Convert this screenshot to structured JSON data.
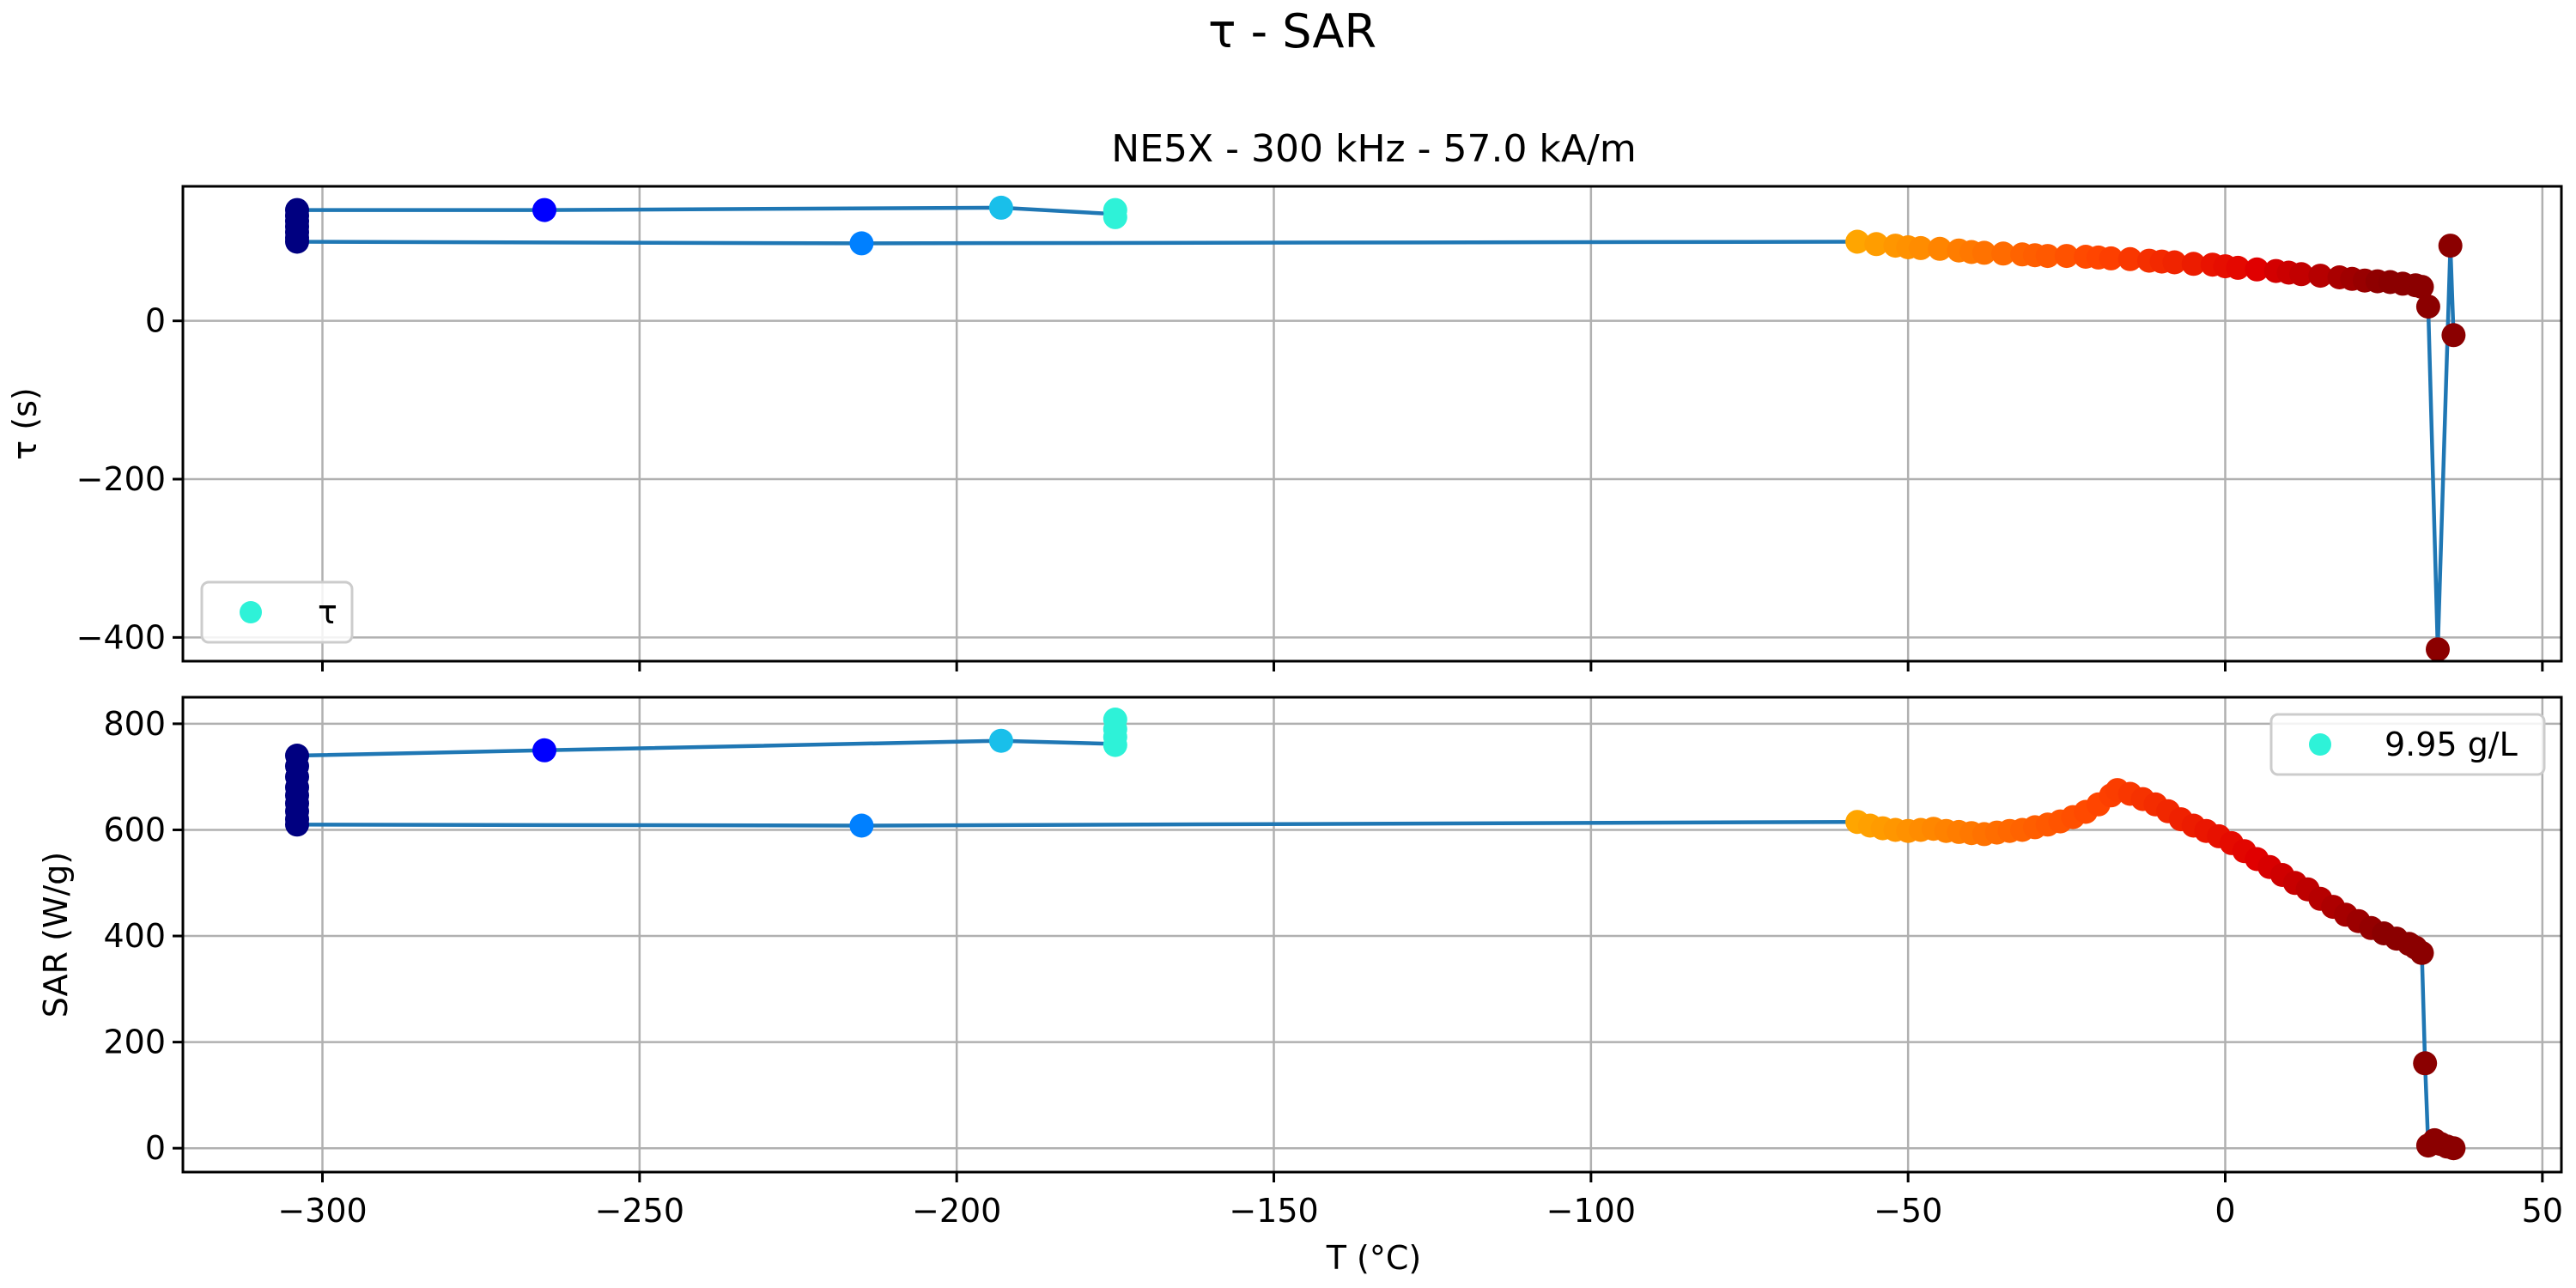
{
  "figure": {
    "suptitle": "τ - SAR",
    "subtitle": "NE5X - 300 kHz - 57.0 kA/m",
    "xlabel": "T (°C)"
  },
  "colors": {
    "line": "#1f77b4",
    "grid": "#b0b0b0",
    "legend_marker": "#2ef2d8",
    "colormap": [
      "#000080",
      "#0000ff",
      "#0080ff",
      "#2ef2d8",
      "#ffa500",
      "#ff4500",
      "#e00000",
      "#8b0000"
    ]
  },
  "chart_data": [
    {
      "type": "scatter",
      "name": "tau-panel",
      "xlabel": "",
      "ylabel": "τ (s)",
      "xlim": [
        -322,
        53
      ],
      "ylim": [
        -430,
        170
      ],
      "xticks": [
        -300,
        -250,
        -200,
        -150,
        -100,
        -50,
        0,
        50
      ],
      "yticks": [
        0,
        -200,
        -400
      ],
      "ytick_labels": [
        "0",
        "−200",
        "−400"
      ],
      "grid": true,
      "legend": {
        "label": "τ",
        "position": "lower-left"
      },
      "points": [
        [
          -304,
          140
        ],
        [
          -304,
          133
        ],
        [
          -304,
          126
        ],
        [
          -304,
          119
        ],
        [
          -304,
          112
        ],
        [
          -304,
          105
        ],
        [
          -304,
          100
        ],
        [
          -265,
          140
        ],
        [
          -215,
          98
        ],
        [
          -193,
          143
        ],
        [
          -175,
          140
        ],
        [
          -175,
          131
        ],
        [
          -58,
          100
        ],
        [
          -55,
          97
        ],
        [
          -52,
          95
        ],
        [
          -50,
          93
        ],
        [
          -48,
          92
        ],
        [
          -45,
          91
        ],
        [
          -42,
          89
        ],
        [
          -40,
          87
        ],
        [
          -38,
          86
        ],
        [
          -35,
          85
        ],
        [
          -32,
          84
        ],
        [
          -30,
          83
        ],
        [
          -28,
          82
        ],
        [
          -25,
          82
        ],
        [
          -22,
          81
        ],
        [
          -20,
          80
        ],
        [
          -18,
          79
        ],
        [
          -15,
          78
        ],
        [
          -12,
          76
        ],
        [
          -10,
          75
        ],
        [
          -8,
          74
        ],
        [
          -5,
          72
        ],
        [
          -2,
          71
        ],
        [
          0,
          69
        ],
        [
          2,
          67
        ],
        [
          5,
          65
        ],
        [
          8,
          63
        ],
        [
          10,
          61
        ],
        [
          12,
          59
        ],
        [
          15,
          57
        ],
        [
          18,
          55
        ],
        [
          20,
          53
        ],
        [
          22,
          51
        ],
        [
          24,
          50
        ],
        [
          26,
          49
        ],
        [
          28,
          47
        ],
        [
          30,
          45
        ],
        [
          31,
          43
        ],
        [
          32,
          18
        ],
        [
          33.5,
          -415
        ],
        [
          35.5,
          95
        ],
        [
          36,
          -18
        ]
      ],
      "line_path": [
        [
          -175,
          135
        ],
        [
          -193,
          143
        ],
        [
          -265,
          140
        ],
        [
          -304,
          140
        ],
        [
          -304,
          100
        ],
        [
          -215,
          98
        ],
        [
          -58,
          100
        ],
        [
          -40,
          88
        ],
        [
          -20,
          80
        ],
        [
          0,
          69
        ],
        [
          20,
          53
        ],
        [
          31,
          43
        ],
        [
          32,
          18
        ],
        [
          33.5,
          -415
        ],
        [
          35.5,
          95
        ],
        [
          36,
          -18
        ]
      ]
    },
    {
      "type": "scatter",
      "name": "sar-panel",
      "xlabel": "T (°C)",
      "ylabel": "SAR (W/g)",
      "xlim": [
        -322,
        53
      ],
      "ylim": [
        -45,
        850
      ],
      "xticks": [
        -300,
        -250,
        -200,
        -150,
        -100,
        -50,
        0,
        50
      ],
      "xtick_labels": [
        "−300",
        "−250",
        "−200",
        "−150",
        "−100",
        "−50",
        "0",
        "50"
      ],
      "yticks": [
        0,
        200,
        400,
        600,
        800
      ],
      "ytick_labels": [
        "0",
        "200",
        "400",
        "600",
        "800"
      ],
      "grid": true,
      "legend": {
        "label": "9.95 g/L",
        "position": "upper-right"
      },
      "points": [
        [
          -304,
          740
        ],
        [
          -304,
          720
        ],
        [
          -304,
          700
        ],
        [
          -304,
          680
        ],
        [
          -304,
          665
        ],
        [
          -304,
          650
        ],
        [
          -304,
          635
        ],
        [
          -304,
          620
        ],
        [
          -304,
          610
        ],
        [
          -265,
          750
        ],
        [
          -215,
          608
        ],
        [
          -193,
          768
        ],
        [
          -175,
          808
        ],
        [
          -175,
          790
        ],
        [
          -175,
          775
        ],
        [
          -175,
          760
        ],
        [
          -58,
          615
        ],
        [
          -56,
          608
        ],
        [
          -54,
          603
        ],
        [
          -52,
          600
        ],
        [
          -50,
          598
        ],
        [
          -48,
          600
        ],
        [
          -46,
          602
        ],
        [
          -44,
          598
        ],
        [
          -42,
          596
        ],
        [
          -40,
          594
        ],
        [
          -38,
          592
        ],
        [
          -36,
          595
        ],
        [
          -34,
          598
        ],
        [
          -32,
          600
        ],
        [
          -30,
          605
        ],
        [
          -28,
          610
        ],
        [
          -26,
          616
        ],
        [
          -24,
          624
        ],
        [
          -22,
          634
        ],
        [
          -20,
          648
        ],
        [
          -18,
          665
        ],
        [
          -17,
          675
        ],
        [
          -15,
          668
        ],
        [
          -13,
          658
        ],
        [
          -11,
          648
        ],
        [
          -9,
          635
        ],
        [
          -7,
          620
        ],
        [
          -5,
          608
        ],
        [
          -3,
          598
        ],
        [
          -1,
          588
        ],
        [
          1,
          575
        ],
        [
          3,
          560
        ],
        [
          5,
          545
        ],
        [
          7,
          530
        ],
        [
          9,
          515
        ],
        [
          11,
          500
        ],
        [
          13,
          488
        ],
        [
          15,
          470
        ],
        [
          17,
          455
        ],
        [
          19,
          440
        ],
        [
          21,
          428
        ],
        [
          23,
          415
        ],
        [
          25,
          405
        ],
        [
          27,
          395
        ],
        [
          29,
          385
        ],
        [
          30,
          378
        ],
        [
          31,
          368
        ],
        [
          31.5,
          160
        ],
        [
          32,
          5
        ],
        [
          33,
          15
        ],
        [
          34,
          8
        ],
        [
          35,
          3
        ],
        [
          36,
          0
        ]
      ],
      "line_path": [
        [
          -175,
          762
        ],
        [
          -193,
          768
        ],
        [
          -265,
          750
        ],
        [
          -304,
          740
        ],
        [
          -304,
          610
        ],
        [
          -215,
          608
        ],
        [
          -58,
          615
        ],
        [
          -40,
          595
        ],
        [
          -30,
          605
        ],
        [
          -20,
          648
        ],
        [
          -17,
          675
        ],
        [
          -10,
          640
        ],
        [
          0,
          582
        ],
        [
          10,
          508
        ],
        [
          20,
          434
        ],
        [
          30,
          378
        ],
        [
          31,
          368
        ],
        [
          31.5,
          160
        ],
        [
          32,
          5
        ],
        [
          33,
          15
        ],
        [
          34,
          8
        ],
        [
          36,
          0
        ]
      ]
    }
  ]
}
